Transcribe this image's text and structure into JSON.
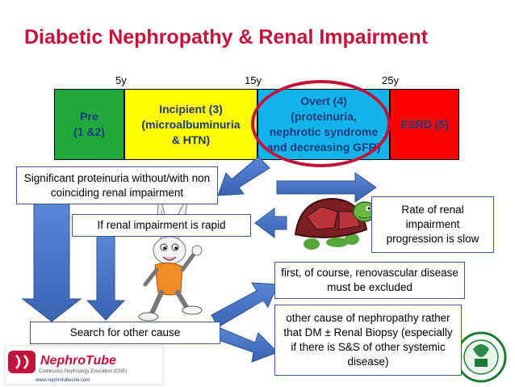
{
  "title": "Diabetic Nephropathy &  Renal Impairment",
  "ticks": [
    "5y",
    "15y",
    "25y"
  ],
  "stages": [
    {
      "label": "Pre\n(1 &2)",
      "color": "#1fa83c"
    },
    {
      "label": "Incipient (3)\n(microalbuminuria\n& HTN)",
      "color": "#ffff00"
    },
    {
      "label": "Overt (4)\n(proteinuria,\nnephrotic syndrome\nand decreasing GFR)",
      "color": "#11b4ea"
    },
    {
      "label": "ESRD (5)",
      "color": "#ff0000"
    }
  ],
  "boxes": {
    "proteinuria": "Significant proteinuria without/with non coinciding renal impairment",
    "rate_slow": "Rate of renal impairment progression is slow",
    "rapid": "If renal impairment is rapid",
    "renovascular": "first, of course, renovascular disease must be excluded",
    "search_other": "Search for other cause",
    "other_cause": "other cause of nephropathy rather that DM ± Renal Biopsy (especially if there is S&S of other systemic disease)"
  },
  "logo": {
    "name": "NephroTube",
    "tagline": "Continuous Nephrology Education (CNE)",
    "url": "www.nephrotubecne.com"
  },
  "colors": {
    "title": "#c0143c",
    "arrow": "#4472c4",
    "arrow_stroke": "#2f528f",
    "oval": "#c0143c"
  },
  "icons": [
    "turtle-illustration",
    "rabbit-illustration",
    "kuc-seal-logo"
  ]
}
